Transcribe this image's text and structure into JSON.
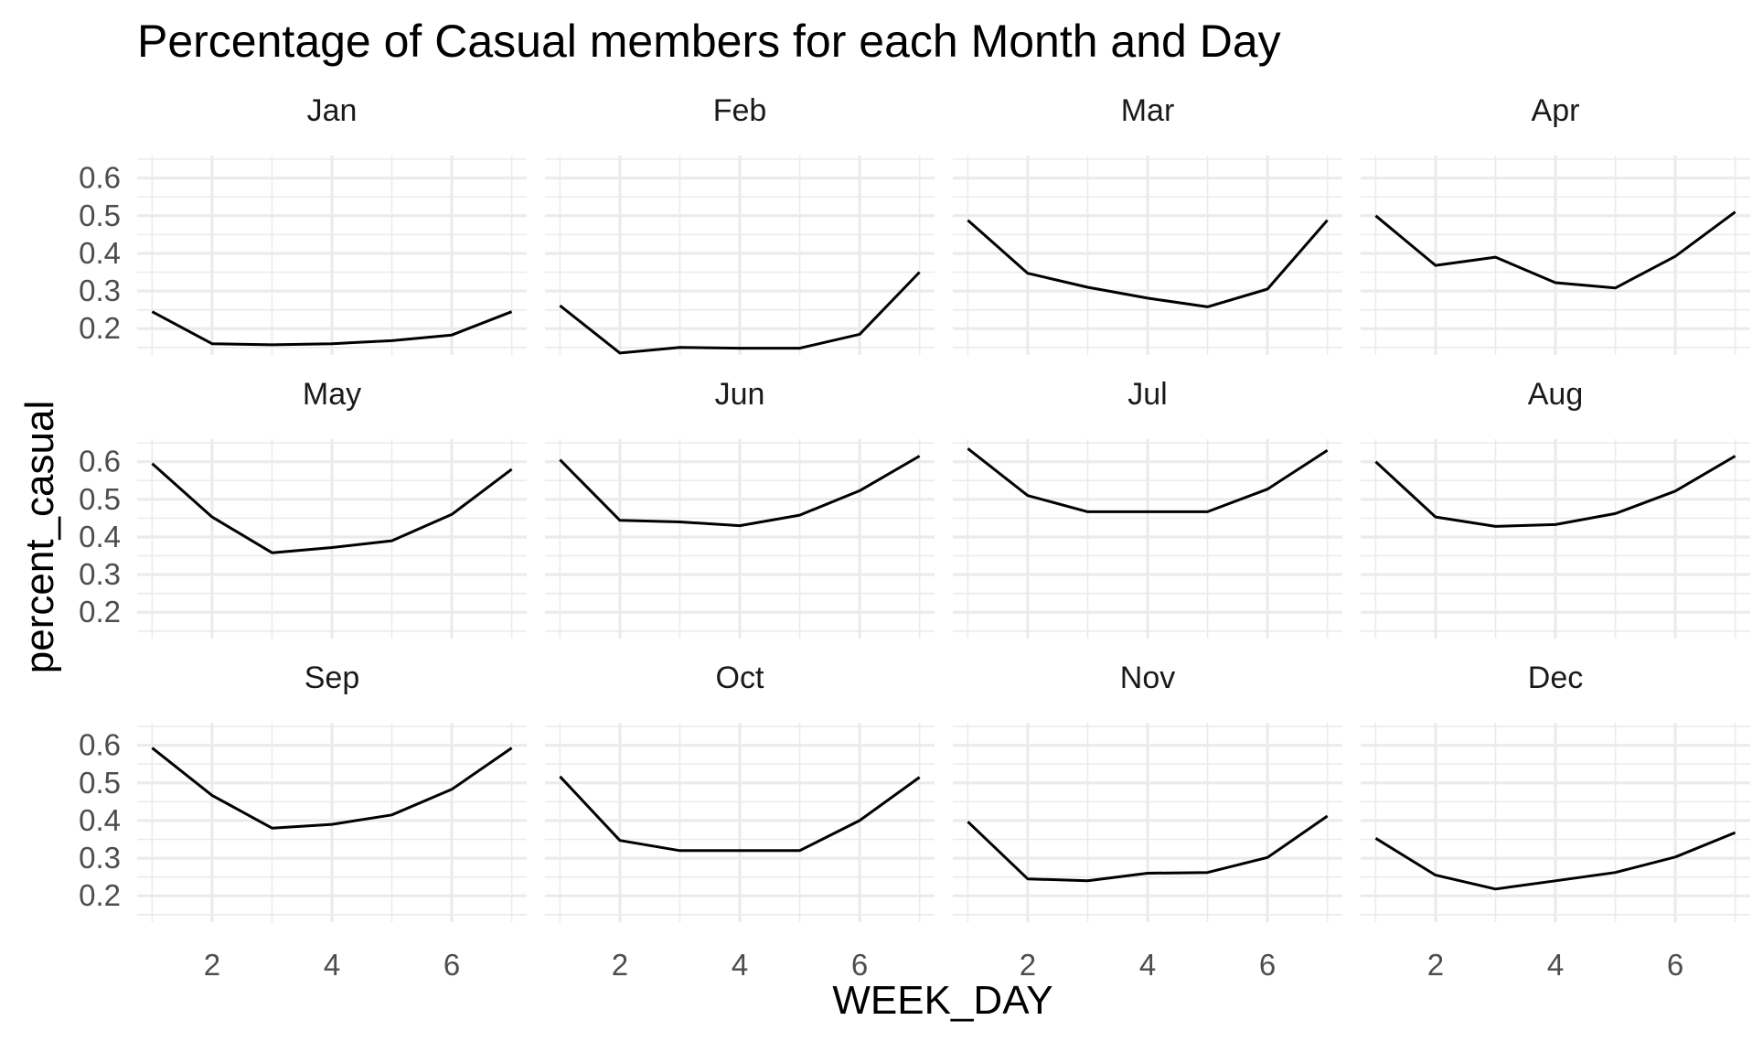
{
  "chart_data": {
    "type": "line",
    "title": "Percentage of Casual members for each Month and Day",
    "xlabel": "WEEK_DAY",
    "ylabel": "percent_casual",
    "x": [
      1,
      2,
      3,
      4,
      5,
      6,
      7
    ],
    "x_ticks": [
      2,
      4,
      6
    ],
    "x_tick_labels": [
      "2",
      "4",
      "6"
    ],
    "y_ticks": [
      0.2,
      0.3,
      0.4,
      0.5,
      0.6
    ],
    "y_tick_labels": [
      "0.2",
      "0.3",
      "0.4",
      "0.5",
      "0.6"
    ],
    "xlim": [
      0.75,
      7.25
    ],
    "ylim": [
      0.13,
      0.66
    ],
    "grid": true,
    "facets": [
      {
        "name": "Jan",
        "values": [
          0.245,
          0.16,
          0.157,
          0.16,
          0.168,
          0.183,
          0.245
        ]
      },
      {
        "name": "Feb",
        "values": [
          0.261,
          0.135,
          0.15,
          0.148,
          0.148,
          0.185,
          0.35
        ]
      },
      {
        "name": "Mar",
        "values": [
          0.488,
          0.347,
          0.31,
          0.281,
          0.258,
          0.305,
          0.488
        ]
      },
      {
        "name": "Apr",
        "values": [
          0.5,
          0.368,
          0.39,
          0.322,
          0.308,
          0.392,
          0.51
        ]
      },
      {
        "name": "May",
        "values": [
          0.595,
          0.453,
          0.358,
          0.372,
          0.39,
          0.46,
          0.58
        ]
      },
      {
        "name": "Jun",
        "values": [
          0.605,
          0.444,
          0.44,
          0.43,
          0.458,
          0.523,
          0.615
        ]
      },
      {
        "name": "Jul",
        "values": [
          0.635,
          0.51,
          0.467,
          0.467,
          0.467,
          0.527,
          0.63
        ]
      },
      {
        "name": "Aug",
        "values": [
          0.6,
          0.453,
          0.428,
          0.433,
          0.462,
          0.522,
          0.615
        ]
      },
      {
        "name": "Sep",
        "values": [
          0.593,
          0.467,
          0.38,
          0.39,
          0.415,
          0.483,
          0.593
        ]
      },
      {
        "name": "Oct",
        "values": [
          0.517,
          0.347,
          0.32,
          0.32,
          0.32,
          0.4,
          0.515
        ]
      },
      {
        "name": "Nov",
        "values": [
          0.397,
          0.245,
          0.24,
          0.26,
          0.262,
          0.302,
          0.412
        ]
      },
      {
        "name": "Dec",
        "values": [
          0.353,
          0.255,
          0.218,
          0.24,
          0.262,
          0.303,
          0.368
        ]
      }
    ]
  }
}
